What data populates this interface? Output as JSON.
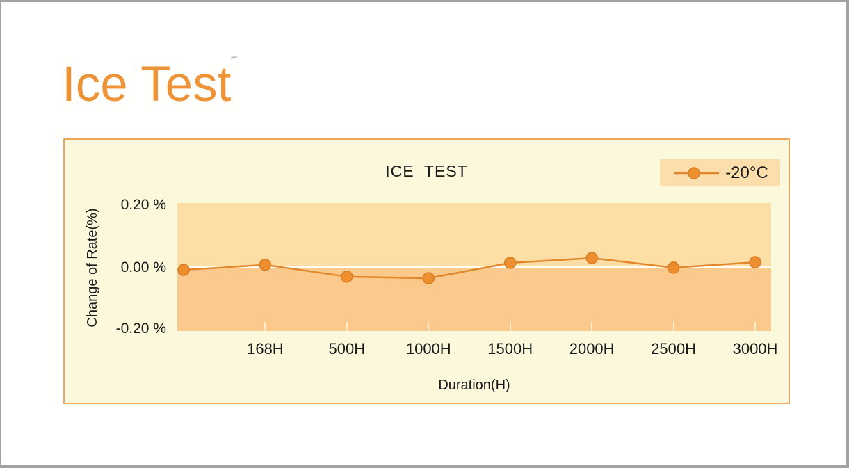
{
  "page": {
    "title": "Ice Test"
  },
  "chart_data": {
    "type": "line",
    "title": "ICE  TEST",
    "xlabel": "Duration(H)",
    "ylabel": "Change of Rate(%)",
    "categories": [
      "",
      "168H",
      "500H",
      "1000H",
      "1500H",
      "2000H",
      "2500H",
      "3000H"
    ],
    "series": [
      {
        "name": "-20°C",
        "values": [
          -0.009,
          0.007,
          -0.03,
          -0.035,
          0.013,
          0.028,
          -0.002,
          0.015
        ]
      }
    ],
    "ylim": [
      -0.2,
      0.2
    ],
    "ytick_values": [
      0.2,
      0.0,
      -0.2
    ],
    "ytick_labels": [
      "0.20 %",
      "0.00 %",
      "-0.20 %"
    ],
    "grid": false,
    "zero_line": true,
    "legend_position": "top-right",
    "marker": "circle"
  },
  "colors": {
    "title_text": "#ed9338",
    "panel_bg": "#fbf8dc",
    "panel_border": "#f0a55c",
    "band_upper": "#fddea5",
    "band_lower": "#fbc98c",
    "zero_line": "#fffef4",
    "series_line": "#e2872c",
    "marker_fill": "#ee8f2f",
    "marker_stroke": "#d87c22",
    "legend_bg": "#fbdeac",
    "axis_text": "#1a1a1a",
    "tick_mark": "#fdf0cf"
  }
}
